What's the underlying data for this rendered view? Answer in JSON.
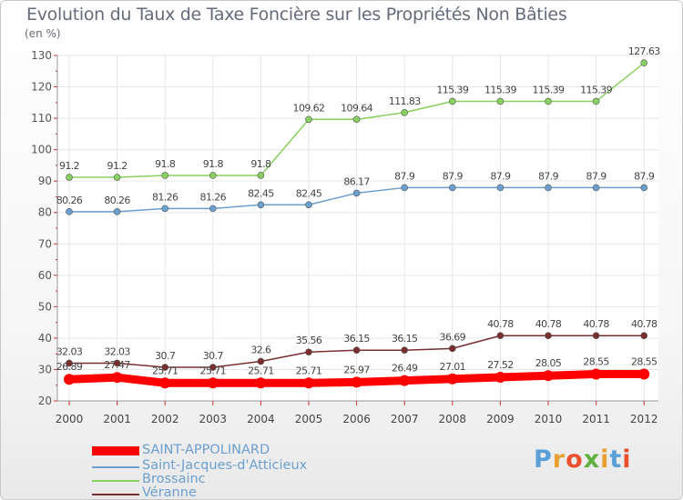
{
  "title": "Evolution du Taux de Taxe Foncière sur les Propriétés Non Bâties",
  "unit_label": "(en %)",
  "logo": {
    "text": "Proxiti",
    "letter_colors": [
      "#5aa0d8",
      "#e8a030",
      "#e85030",
      "#60b040",
      "#e8a030",
      "#5aa0d8",
      "#e85030"
    ]
  },
  "chart_data": {
    "type": "line",
    "title": "Evolution du Taux de Taxe Foncière sur les Propriétés Non Bâties",
    "ylabel": "(en %)",
    "xlabel": "",
    "x": [
      2000,
      2001,
      2002,
      2003,
      2004,
      2005,
      2006,
      2007,
      2008,
      2009,
      2010,
      2011,
      2012
    ],
    "ylim": [
      20,
      130
    ],
    "yticks": [
      20,
      30,
      40,
      50,
      60,
      70,
      80,
      90,
      100,
      110,
      120,
      130
    ],
    "grid": true,
    "legend_position": "bottom-left",
    "series": [
      {
        "name": "SAINT-APPOLINARD",
        "color": "#ff0000",
        "labels": [
          "26.89",
          "27.47",
          "25.71",
          "25.71",
          "25.71",
          "25.71",
          "25.97",
          "26.49",
          "27.01",
          "27.52",
          "28.05",
          "28.55",
          "28.55"
        ],
        "values": [
          26.89,
          27.47,
          25.71,
          25.71,
          25.71,
          25.71,
          25.97,
          26.49,
          27.01,
          27.52,
          28.05,
          28.55,
          28.55
        ]
      },
      {
        "name": "Saint-Jacques-d'Atticieux",
        "color": "#6a9fd0",
        "labels": [
          "80.26",
          "80.26",
          "81.26",
          "81.26",
          "82.45",
          "82.45",
          "86.17",
          "87.9",
          "87.9",
          "87.9",
          "87.9",
          "87.9",
          "87.9"
        ],
        "values": [
          80.26,
          80.26,
          81.26,
          81.26,
          82.45,
          82.45,
          86.17,
          87.9,
          87.9,
          87.9,
          87.9,
          87.9,
          87.9
        ]
      },
      {
        "name": "Brossainc",
        "color": "#88d060",
        "labels": [
          "91.2",
          "91.2",
          "91.8",
          "91.8",
          "91.8",
          "109.62",
          "109.64",
          "111.83",
          "115.39",
          "115.39",
          "115.39",
          "115.39",
          "127.63"
        ],
        "values": [
          91.2,
          91.2,
          91.8,
          91.8,
          91.8,
          109.62,
          109.64,
          111.83,
          115.39,
          115.39,
          115.39,
          115.39,
          127.63
        ]
      },
      {
        "name": "Véranne",
        "color": "#7a2e2e",
        "labels": [
          "32.03",
          "32.03",
          "30.7",
          "30.7",
          "32.6",
          "35.56",
          "36.15",
          "36.15",
          "36.69",
          "40.78",
          "40.78",
          "40.78",
          "40.78"
        ],
        "values": [
          32.03,
          32.03,
          30.7,
          30.7,
          32.6,
          35.56,
          36.15,
          36.15,
          36.69,
          40.78,
          40.78,
          40.78,
          40.78
        ]
      }
    ]
  }
}
